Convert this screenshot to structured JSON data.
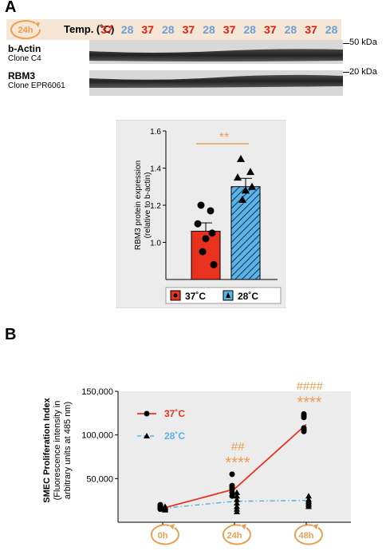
{
  "panel_a": {
    "letter": "A",
    "timepoint_badge": "24h",
    "temp_label": "Temp. (˚C)",
    "temps": [
      "37",
      "28",
      "37",
      "28",
      "37",
      "28",
      "37",
      "28",
      "37",
      "28",
      "37",
      "28"
    ],
    "markers": [
      {
        "name": "b-Actin",
        "clone": "Clone C4",
        "kda": "50 kDa"
      },
      {
        "name": "RBM3",
        "clone": "Clone EPR6061",
        "kda": "20 kDa"
      }
    ]
  },
  "panel_b_letter": "B",
  "colors": {
    "red": "#e8321e",
    "blue": "#5ab4e6",
    "orange": "#e8a050",
    "temp_red": "#e02010",
    "temp_blue": "#6fa0d8"
  },
  "chart_data": [
    {
      "type": "bar",
      "ylabel": "RBM3 protein expression\n(relative to b-actin)",
      "ylim": [
        0.8,
        1.6
      ],
      "yticks": [
        "1.0",
        "1.2",
        "1.4",
        "1.6"
      ],
      "significance": "**",
      "legend": [
        "37˚C",
        "28˚C"
      ],
      "series": [
        {
          "name": "37˚C",
          "mean": 1.06,
          "sem": 0.045,
          "points": [
            1.2,
            1.17,
            1.1,
            1.05,
            1.02,
            0.95,
            0.88
          ]
        },
        {
          "name": "28˚C",
          "mean": 1.3,
          "sem": 0.045,
          "points": [
            1.45,
            1.38,
            1.35,
            1.3,
            1.28,
            1.23
          ]
        }
      ]
    },
    {
      "type": "line",
      "ylabel": "SMEC Proliferation Index\n(Fluorescence intensity in\narbitrary units at 485 nm)",
      "ylim": [
        0,
        150000
      ],
      "yticks": [
        "50,000",
        "100,000",
        "150,000"
      ],
      "yticks_values": [
        50000,
        100000,
        150000
      ],
      "categories": [
        "0h",
        "24h",
        "48h"
      ],
      "series": [
        {
          "name": "37˚C",
          "values": [
            16000,
            38000,
            112000
          ],
          "points": [
            [
              15000,
              16000,
              17000,
              18000,
              19000,
              20000
            ],
            [
              30000,
              34000,
              38000,
              40000,
              42000,
              55000
            ],
            [
              104000,
              106000,
              108000,
              120000,
              122000,
              124000
            ]
          ]
        },
        {
          "name": "28˚C",
          "values": [
            16000,
            24000,
            25000
          ],
          "points": [
            [
              14000,
              15000,
              16000,
              17000,
              18000
            ],
            [
              12000,
              15000,
              18000,
              22000,
              26000,
              30000,
              34000
            ],
            [
              18000,
              20000,
              22000,
              24000,
              26000,
              30000
            ]
          ]
        }
      ],
      "annotations": [
        {
          "at": "24h",
          "hash": "##",
          "stars": "****"
        },
        {
          "at": "48h",
          "hash": "####",
          "stars": "****"
        }
      ]
    }
  ]
}
